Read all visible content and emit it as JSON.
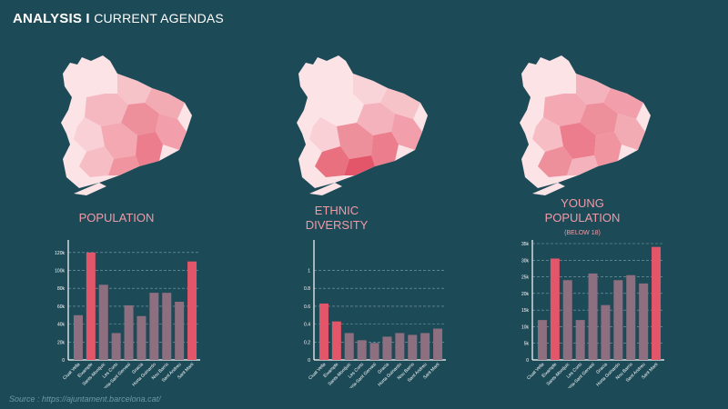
{
  "header": {
    "title_bold": "ANALYSIS I",
    "title_light": "CURRENT AGENDAS"
  },
  "panels": [
    {
      "label": "POPULATION",
      "sublabel": ""
    },
    {
      "label": "ETHNIC DIVERSITY",
      "sublabel": ""
    },
    {
      "label": "YOUNG POPULATION",
      "sublabel": "(BELOW 18)"
    }
  ],
  "source": "Source : https://ajuntament.barcelona.cat/",
  "colors": {
    "background": "#1d4a57",
    "highlight": "#e3566a",
    "bar": "#8e6f80",
    "accent_text": "#f19aa7"
  },
  "chart_data": [
    {
      "type": "bar",
      "categories": [
        "Ciuat Vella",
        "Eixample",
        "Sants-Montjuic",
        "Les Corts",
        "Sarria-Sant Gervasi",
        "Gracia",
        "Horta Guinardo",
        "Nou Barris",
        "Sant Andreu",
        "Sant Marti"
      ],
      "values": [
        50000,
        120000,
        84000,
        30000,
        61000,
        49000,
        75000,
        75000,
        65000,
        110000
      ],
      "highlight": [
        1,
        9
      ],
      "ylim": [
        0,
        130000
      ],
      "yticks": [
        0,
        20000,
        40000,
        60000,
        80000,
        100000,
        120000
      ],
      "ytick_labels": [
        "0",
        "20k",
        "40k",
        "60k",
        "80k",
        "100k",
        "120k"
      ],
      "grid": true
    },
    {
      "type": "bar",
      "categories": [
        "Ciuat Vella",
        "Eixample",
        "Sants-Montjuic",
        "Les Corts",
        "Sarria-Sant Gervasi",
        "Gracia",
        "Horta Guinardo",
        "Nou Barris",
        "Sant Andreu",
        "Sant Marti"
      ],
      "values": [
        0.63,
        0.43,
        0.3,
        0.22,
        0.19,
        0.26,
        0.3,
        0.28,
        0.3,
        0.35
      ],
      "highlight": [
        0,
        1
      ],
      "ylim": [
        0,
        1.3
      ],
      "yticks": [
        0,
        0.2,
        0.4,
        0.6,
        0.8,
        1
      ],
      "ytick_labels": [
        "0",
        "0.2",
        "0.4",
        "0.6",
        "0.8",
        "1"
      ],
      "grid": true
    },
    {
      "type": "bar",
      "categories": [
        "Ciuat Vella",
        "Eixample",
        "Sants-Montjuic",
        "Les Corts",
        "Sarria-Sant Gervasi",
        "Gracia",
        "Horta Guinardo",
        "Nou Barris",
        "Sant Andreu",
        "Sant Marti"
      ],
      "values": [
        12000,
        30500,
        24000,
        12000,
        26000,
        16500,
        24000,
        25500,
        23000,
        34000
      ],
      "highlight": [
        1,
        9
      ],
      "ylim": [
        0,
        35000
      ],
      "yticks": [
        0,
        5000,
        10000,
        15000,
        20000,
        25000,
        30000,
        35000
      ],
      "ytick_labels": [
        "0",
        "5k",
        "10k",
        "15k",
        "20k",
        "25k",
        "30k",
        "35k"
      ],
      "grid": true
    }
  ]
}
